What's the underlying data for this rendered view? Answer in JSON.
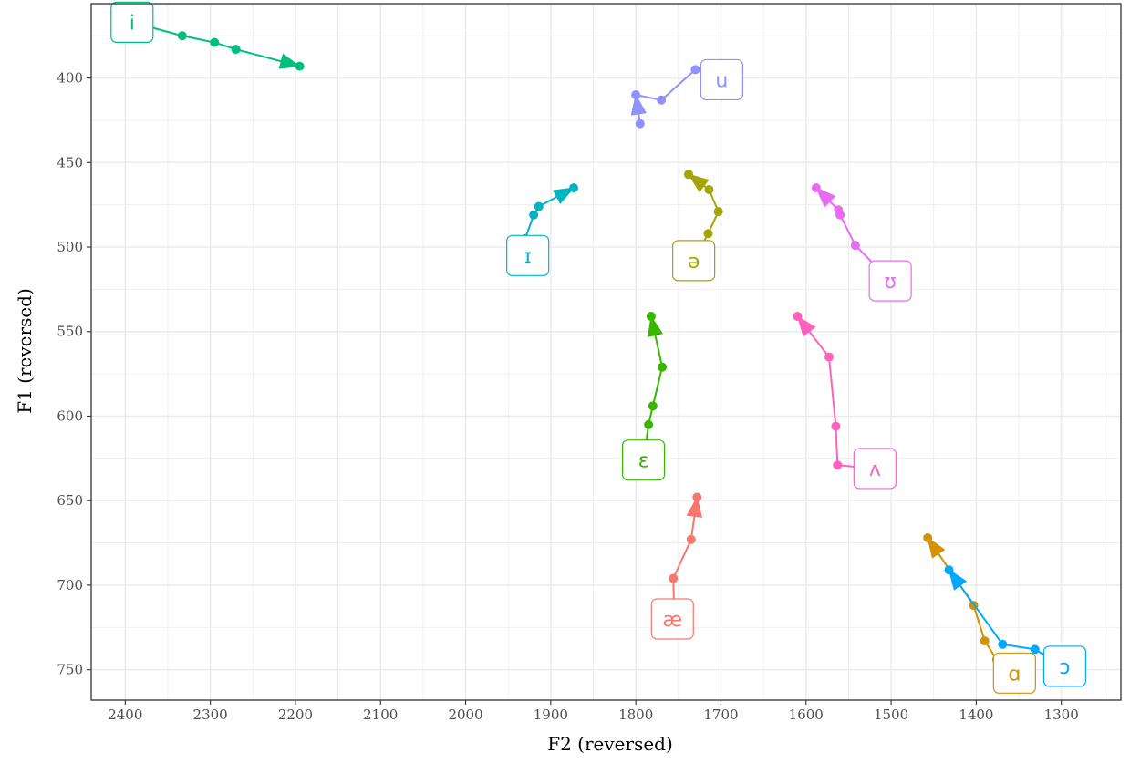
{
  "chart_data": {
    "type": "line",
    "title": "",
    "xlabel": "F2 (reversed)",
    "ylabel": "F1 (reversed)",
    "x_reversed": true,
    "y_reversed": true,
    "xlim": [
      2440,
      1230
    ],
    "ylim": [
      356,
      768
    ],
    "x_ticks": [
      2400,
      2300,
      2200,
      2100,
      2000,
      1900,
      1800,
      1700,
      1600,
      1500,
      1400,
      1300
    ],
    "y_ticks": [
      400,
      450,
      500,
      550,
      600,
      650,
      700,
      750
    ],
    "grid": true,
    "legend": "none",
    "series": [
      {
        "name": "i",
        "color": "#00BF7D",
        "label_at": [
          2392,
          367
        ],
        "points": [
          [
            2392,
            367
          ],
          [
            2333,
            375
          ],
          [
            2295,
            379
          ],
          [
            2270,
            383
          ],
          [
            2195,
            393
          ]
        ]
      },
      {
        "name": "u",
        "color": "#8F91FF",
        "label_at": [
          1699,
          401
        ],
        "points": [
          [
            1699,
            401
          ],
          [
            1730,
            395
          ],
          [
            1770,
            413
          ],
          [
            1800,
            410
          ],
          [
            1795,
            427
          ],
          [
            1800,
            410
          ]
        ]
      },
      {
        "name": "ɪ",
        "color": "#00B4C4",
        "label_at": [
          1927,
          505
        ],
        "points": [
          [
            1927,
            505
          ],
          [
            1930,
            495
          ],
          [
            1920,
            481
          ],
          [
            1914,
            476
          ],
          [
            1873,
            465
          ]
        ]
      },
      {
        "name": "ə",
        "color": "#A3A500",
        "label_at": [
          1732,
          508
        ],
        "points": [
          [
            1732,
            508
          ],
          [
            1715,
            492
          ],
          [
            1703,
            479
          ],
          [
            1714,
            466
          ],
          [
            1738,
            457
          ]
        ]
      },
      {
        "name": "ʊ",
        "color": "#E76BF3",
        "label_at": [
          1501,
          520
        ],
        "points": [
          [
            1501,
            520
          ],
          [
            1542,
            499
          ],
          [
            1560,
            481
          ],
          [
            1562,
            478
          ],
          [
            1588,
            465
          ]
        ]
      },
      {
        "name": "ɛ",
        "color": "#39B600",
        "label_at": [
          1791,
          626
        ],
        "points": [
          [
            1791,
            626
          ],
          [
            1785,
            605
          ],
          [
            1780,
            594
          ],
          [
            1769,
            571
          ],
          [
            1782,
            541
          ]
        ]
      },
      {
        "name": "ʌ",
        "color": "#FF62BC",
        "label_at": [
          1519,
          631
        ],
        "points": [
          [
            1519,
            631
          ],
          [
            1563,
            629
          ],
          [
            1565,
            606
          ],
          [
            1573,
            565
          ],
          [
            1610,
            541
          ]
        ]
      },
      {
        "name": "æ",
        "color": "#F8766D",
        "label_at": [
          1757,
          720
        ],
        "points": [
          [
            1757,
            720
          ],
          [
            1755,
            714
          ],
          [
            1756,
            696
          ],
          [
            1735,
            673
          ],
          [
            1728,
            648
          ]
        ]
      },
      {
        "name": "ɑ",
        "color": "#D39200",
        "label_at": [
          1355,
          752
        ],
        "points": [
          [
            1355,
            752
          ],
          [
            1376,
            744
          ],
          [
            1390,
            733
          ],
          [
            1403,
            712
          ],
          [
            1457,
            672
          ]
        ]
      },
      {
        "name": "ɔ",
        "color": "#00A9FF",
        "label_at": [
          1296,
          748
        ],
        "points": [
          [
            1296,
            748
          ],
          [
            1300,
            747
          ],
          [
            1331,
            738
          ],
          [
            1369,
            735
          ],
          [
            1432,
            691
          ]
        ]
      }
    ]
  }
}
